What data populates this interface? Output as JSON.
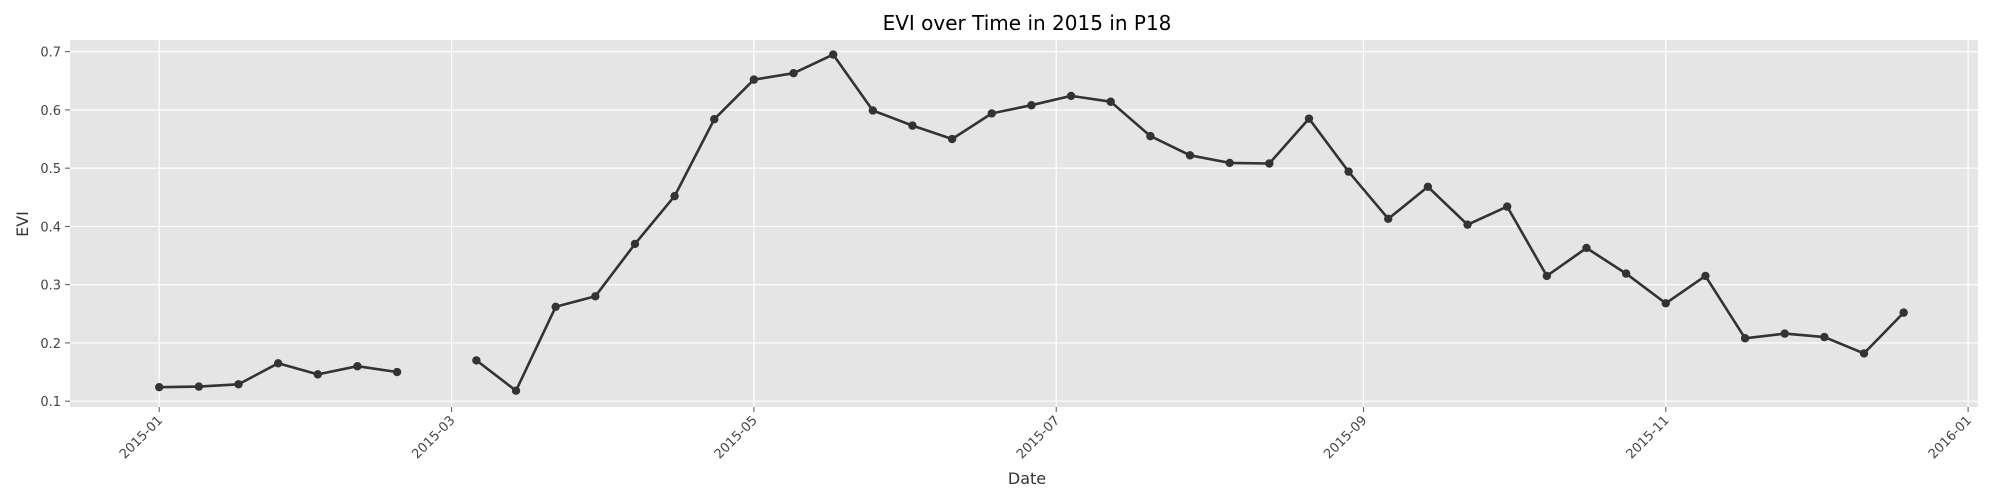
{
  "chart_data": {
    "type": "line",
    "title": "EVI over Time in 2015 in P18",
    "xlabel": "Date",
    "ylabel": "EVI",
    "xlim": [
      "2014-12-14",
      "2016-01-03"
    ],
    "ylim": [
      0.09,
      0.72
    ],
    "x_ticks": [
      "2015-01",
      "2015-03",
      "2015-05",
      "2015-07",
      "2015-09",
      "2015-11",
      "2016-01"
    ],
    "y_ticks": [
      "0.1",
      "0.2",
      "0.3",
      "0.4",
      "0.5",
      "0.6",
      "0.7"
    ],
    "grid": true,
    "legend": "none",
    "colors": {
      "line": "#333333",
      "panel": "#e5e5e5",
      "grid": "#ffffff"
    },
    "series": [
      {
        "points": [
          {
            "x": "2015-01-01",
            "y": 0.124
          },
          {
            "x": "2015-01-09",
            "y": 0.125
          },
          {
            "x": "2015-01-17",
            "y": 0.129
          },
          {
            "x": "2015-01-25",
            "y": 0.165
          },
          {
            "x": "2015-02-02",
            "y": 0.146
          },
          {
            "x": "2015-02-10",
            "y": 0.16
          },
          {
            "x": "2015-02-18",
            "y": 0.15
          },
          {
            "x": "2015-02-26",
            "y": null
          },
          {
            "x": "2015-03-06",
            "y": 0.17
          },
          {
            "x": "2015-03-14",
            "y": 0.118
          },
          {
            "x": "2015-03-22",
            "y": 0.262
          },
          {
            "x": "2015-03-30",
            "y": 0.28
          },
          {
            "x": "2015-04-07",
            "y": 0.37
          },
          {
            "x": "2015-04-15",
            "y": 0.452
          },
          {
            "x": "2015-04-23",
            "y": 0.584
          },
          {
            "x": "2015-05-01",
            "y": 0.652
          },
          {
            "x": "2015-05-09",
            "y": 0.663
          },
          {
            "x": "2015-05-17",
            "y": 0.695
          },
          {
            "x": "2015-05-25",
            "y": 0.599
          },
          {
            "x": "2015-06-02",
            "y": 0.573
          },
          {
            "x": "2015-06-10",
            "y": 0.55
          },
          {
            "x": "2015-06-18",
            "y": 0.594
          },
          {
            "x": "2015-06-26",
            "y": 0.608
          },
          {
            "x": "2015-07-04",
            "y": 0.624
          },
          {
            "x": "2015-07-12",
            "y": 0.614
          },
          {
            "x": "2015-07-20",
            "y": 0.555
          },
          {
            "x": "2015-07-28",
            "y": 0.522
          },
          {
            "x": "2015-08-05",
            "y": 0.509
          },
          {
            "x": "2015-08-13",
            "y": 0.508
          },
          {
            "x": "2015-08-21",
            "y": 0.585
          },
          {
            "x": "2015-08-29",
            "y": 0.494
          },
          {
            "x": "2015-09-06",
            "y": 0.413
          },
          {
            "x": "2015-09-14",
            "y": 0.468
          },
          {
            "x": "2015-09-22",
            "y": 0.403
          },
          {
            "x": "2015-09-30",
            "y": 0.434
          },
          {
            "x": "2015-10-08",
            "y": 0.315
          },
          {
            "x": "2015-10-16",
            "y": 0.363
          },
          {
            "x": "2015-10-24",
            "y": 0.319
          },
          {
            "x": "2015-11-01",
            "y": 0.268
          },
          {
            "x": "2015-11-09",
            "y": 0.315
          },
          {
            "x": "2015-11-17",
            "y": 0.208
          },
          {
            "x": "2015-11-25",
            "y": 0.216
          },
          {
            "x": "2015-12-03",
            "y": 0.21
          },
          {
            "x": "2015-12-11",
            "y": 0.182
          },
          {
            "x": "2015-12-19",
            "y": 0.252
          }
        ]
      }
    ]
  }
}
